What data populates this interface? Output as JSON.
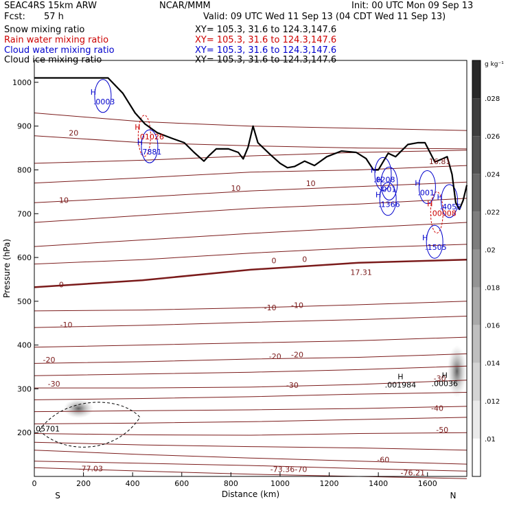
{
  "header": {
    "model": "SEAC4RS 15km ARW",
    "producer": "NCAR/MMM",
    "init": "Init: 00 UTC Mon 09 Sep 13",
    "fcst_label": "Fcst:",
    "fcst_value": "57 h",
    "valid": "Valid: 09 UTC Wed 11 Sep 13 (04 CDT Wed 11 Sep 13)"
  },
  "fields": [
    {
      "name": "Snow mixing ratio",
      "xy": "XY= 105.3, 31.6 to 124.3,147.6",
      "color": "#000000"
    },
    {
      "name": "Rain water mixing ratio",
      "xy": "XY= 105.3, 31.6 to 124.3,147.6",
      "color": "#cc0000"
    },
    {
      "name": "Cloud water mixing ratio",
      "xy": "XY= 105.3, 31.6 to 124.3,147.6",
      "color": "#0000cc"
    },
    {
      "name": "Cloud ice mixing ratio",
      "xy": "XY= 105.3, 31.6 to 124.3,147.6",
      "color": "#000000"
    }
  ],
  "chart_data": {
    "type": "contour",
    "xlabel": "Distance (km)",
    "ylabel": "Pressure (hPa)",
    "xlim": [
      0,
      1760
    ],
    "ylim": [
      1050,
      100
    ],
    "xticks": [
      "0",
      "200",
      "400",
      "600",
      "800",
      "1000",
      "1200",
      "1400",
      "1600"
    ],
    "yticks": [
      "200",
      "300",
      "400",
      "500",
      "600",
      "700",
      "800",
      "900",
      "1000"
    ],
    "endpoints": {
      "left": "S",
      "right": "N"
    },
    "colorbar": {
      "unit": "g kg⁻¹",
      "labels": [
        ".028",
        ".026",
        ".024",
        ".022",
        ".02",
        ".018",
        ".016",
        ".014",
        ".012",
        ".01"
      ]
    },
    "temperature_contours": [
      {
        "level": -70,
        "labels": [
          {
            "x": 1085,
            "p": 110,
            "text": "-70"
          }
        ]
      },
      {
        "level": -60,
        "labels": [
          {
            "x": 1420,
            "p": 132,
            "text": "-60"
          }
        ]
      },
      {
        "level": -50,
        "labels": [
          {
            "x": 1660,
            "p": 200,
            "text": "-50"
          }
        ]
      },
      {
        "level": -40,
        "labels": [
          {
            "x": 1640,
            "p": 250,
            "text": "-40"
          }
        ]
      },
      {
        "level": -30,
        "labels": [
          {
            "x": 80,
            "p": 305,
            "text": "-30"
          },
          {
            "x": 1050,
            "p": 302,
            "text": "-30"
          },
          {
            "x": 1650,
            "p": 318,
            "text": "-30"
          }
        ]
      },
      {
        "level": -20,
        "labels": [
          {
            "x": 60,
            "p": 360,
            "text": "-20"
          },
          {
            "x": 980,
            "p": 368,
            "text": "-20"
          },
          {
            "x": 1070,
            "p": 372,
            "text": "-20"
          }
        ]
      },
      {
        "level": -10,
        "labels": [
          {
            "x": 130,
            "p": 440,
            "text": "-10"
          },
          {
            "x": 960,
            "p": 479,
            "text": "-10"
          },
          {
            "x": 1070,
            "p": 485,
            "text": "-10"
          }
        ]
      },
      {
        "level": 0,
        "labels": [
          {
            "x": 110,
            "p": 532,
            "text": "0"
          },
          {
            "x": 975,
            "p": 587,
            "text": "0"
          },
          {
            "x": 1100,
            "p": 590,
            "text": "0"
          }
        ]
      },
      {
        "level": 10,
        "labels": [
          {
            "x": 120,
            "p": 725,
            "text": "10"
          },
          {
            "x": 820,
            "p": 752,
            "text": "10"
          },
          {
            "x": 1125,
            "p": 763,
            "text": "10"
          }
        ]
      },
      {
        "level": 20,
        "labels": [
          {
            "x": 160,
            "p": 878,
            "text": "20"
          }
        ]
      }
    ],
    "extra_labels": [
      {
        "x": 230,
        "p": 112,
        "text": "-77.03"
      },
      {
        "x": 1540,
        "p": 102,
        "text": "-76.21"
      },
      {
        "x": 1010,
        "p": 110,
        "text": "-73.36"
      },
      {
        "x": 1330,
        "p": 560,
        "text": "17.31"
      },
      {
        "x": 1650,
        "p": 813,
        "text": "16.81"
      }
    ],
    "snow_contours": [
      {
        "value": "H",
        "x": 1490,
        "p": 303,
        "label": ".001984"
      },
      {
        "value": "H",
        "x": 1670,
        "p": 306,
        "label": ".00036"
      }
    ],
    "rain_maxima": [
      {
        "x": 420,
        "p": 870,
        "label": ".01026"
      },
      {
        "x": 1610,
        "p": 695,
        "label": ".00008"
      }
    ],
    "cloud_water_maxima": [
      {
        "x": 240,
        "p": 950,
        "label": ".0003"
      },
      {
        "x": 430,
        "p": 835,
        "label": ".7881"
      },
      {
        "x": 1380,
        "p": 772,
        "label": ".0208"
      },
      {
        "x": 1400,
        "p": 715,
        "label": ".1366"
      },
      {
        "x": 1405,
        "p": 750,
        "label": ".001"
      },
      {
        "x": 1560,
        "p": 742,
        "label": ".001"
      },
      {
        "x": 1590,
        "p": 617,
        "label": ".1505"
      },
      {
        "x": 1650,
        "p": 710,
        "label": ".4055"
      }
    ],
    "cloud_ice_maxima": [
      {
        "x": 50,
        "p": 203,
        "label": ".05701"
      }
    ],
    "terrain": [
      [
        0,
        1010
      ],
      [
        300,
        1010
      ],
      [
        360,
        975
      ],
      [
        410,
        930
      ],
      [
        450,
        905
      ],
      [
        500,
        885
      ],
      [
        560,
        872
      ],
      [
        610,
        862
      ],
      [
        650,
        840
      ],
      [
        690,
        820
      ],
      [
        710,
        832
      ],
      [
        740,
        848
      ],
      [
        790,
        848
      ],
      [
        830,
        840
      ],
      [
        850,
        825
      ],
      [
        870,
        852
      ],
      [
        890,
        900
      ],
      [
        910,
        862
      ],
      [
        960,
        835
      ],
      [
        1000,
        815
      ],
      [
        1030,
        805
      ],
      [
        1060,
        808
      ],
      [
        1100,
        820
      ],
      [
        1140,
        810
      ],
      [
        1190,
        830
      ],
      [
        1250,
        843
      ],
      [
        1310,
        840
      ],
      [
        1350,
        826
      ],
      [
        1380,
        800
      ],
      [
        1400,
        800
      ],
      [
        1440,
        838
      ],
      [
        1470,
        830
      ],
      [
        1520,
        858
      ],
      [
        1560,
        862
      ],
      [
        1590,
        862
      ],
      [
        1630,
        818
      ],
      [
        1660,
        825
      ],
      [
        1680,
        830
      ],
      [
        1700,
        790
      ],
      [
        1715,
        725
      ],
      [
        1730,
        710
      ],
      [
        1745,
        730
      ],
      [
        1760,
        765
      ]
    ]
  }
}
